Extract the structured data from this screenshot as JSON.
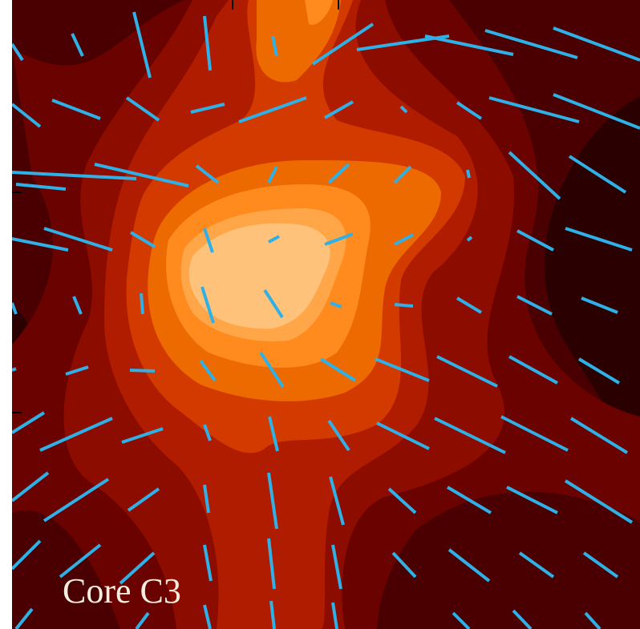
{
  "label": "Core C3"
}
